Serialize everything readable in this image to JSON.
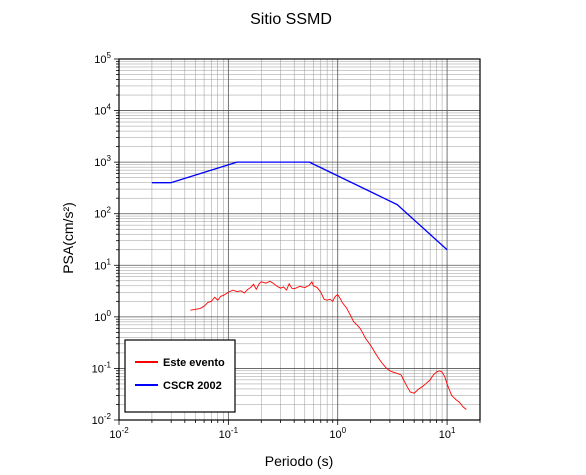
{
  "chart_data": {
    "type": "line",
    "title": "Sitio SSMD",
    "xlabel": "Periodo (s)",
    "ylabel": "PSA(cm/s²)",
    "xscale": "log",
    "yscale": "log",
    "xlim": [
      0.01,
      20
    ],
    "ylim": [
      0.01,
      100000
    ],
    "grid": true,
    "legend_position": "bottom-left",
    "x_ticks": [
      {
        "base": "10",
        "exp": "-2",
        "value": 0.01
      },
      {
        "base": "10",
        "exp": "-1",
        "value": 0.1
      },
      {
        "base": "10",
        "exp": "0",
        "value": 1
      },
      {
        "base": "10",
        "exp": "1",
        "value": 10
      }
    ],
    "y_ticks": [
      {
        "base": "10",
        "exp": "-2",
        "value": 0.01
      },
      {
        "base": "10",
        "exp": "-1",
        "value": 0.1
      },
      {
        "base": "10",
        "exp": "0",
        "value": 1
      },
      {
        "base": "10",
        "exp": "1",
        "value": 10
      },
      {
        "base": "10",
        "exp": "2",
        "value": 100
      },
      {
        "base": "10",
        "exp": "3",
        "value": 1000
      },
      {
        "base": "10",
        "exp": "4",
        "value": 10000
      },
      {
        "base": "10",
        "exp": "5",
        "value": 100000
      }
    ],
    "series": [
      {
        "name": "Este evento",
        "color": "#ff0000",
        "points": [
          [
            0.045,
            1.35
          ],
          [
            0.05,
            1.4
          ],
          [
            0.055,
            1.45
          ],
          [
            0.06,
            1.6
          ],
          [
            0.065,
            1.9
          ],
          [
            0.07,
            2.0
          ],
          [
            0.075,
            2.4
          ],
          [
            0.08,
            2.1
          ],
          [
            0.085,
            2.5
          ],
          [
            0.09,
            2.6
          ],
          [
            0.1,
            3.0
          ],
          [
            0.11,
            3.3
          ],
          [
            0.12,
            3.1
          ],
          [
            0.13,
            3.2
          ],
          [
            0.14,
            2.9
          ],
          [
            0.15,
            3.4
          ],
          [
            0.16,
            3.7
          ],
          [
            0.17,
            4.3
          ],
          [
            0.18,
            3.4
          ],
          [
            0.19,
            4.3
          ],
          [
            0.2,
            4.8
          ],
          [
            0.22,
            4.5
          ],
          [
            0.24,
            4.9
          ],
          [
            0.26,
            4.4
          ],
          [
            0.28,
            3.9
          ],
          [
            0.3,
            3.6
          ],
          [
            0.32,
            3.8
          ],
          [
            0.34,
            3.3
          ],
          [
            0.36,
            4.4
          ],
          [
            0.38,
            3.6
          ],
          [
            0.4,
            3.5
          ],
          [
            0.45,
            3.9
          ],
          [
            0.5,
            3.7
          ],
          [
            0.55,
            4.1
          ],
          [
            0.58,
            4.8
          ],
          [
            0.6,
            4.0
          ],
          [
            0.65,
            3.7
          ],
          [
            0.7,
            3.0
          ],
          [
            0.75,
            2.2
          ],
          [
            0.8,
            2.1
          ],
          [
            0.85,
            2.2
          ],
          [
            0.9,
            2.0
          ],
          [
            0.95,
            2.5
          ],
          [
            1.0,
            2.7
          ],
          [
            1.05,
            2.3
          ],
          [
            1.1,
            1.9
          ],
          [
            1.2,
            1.5
          ],
          [
            1.3,
            1.1
          ],
          [
            1.4,
            0.8
          ],
          [
            1.5,
            0.7
          ],
          [
            1.6,
            0.6
          ],
          [
            1.7,
            0.48
          ],
          [
            1.8,
            0.38
          ],
          [
            2.0,
            0.28
          ],
          [
            2.2,
            0.2
          ],
          [
            2.4,
            0.15
          ],
          [
            2.6,
            0.12
          ],
          [
            2.8,
            0.1
          ],
          [
            3.0,
            0.09
          ],
          [
            3.2,
            0.085
          ],
          [
            3.5,
            0.08
          ],
          [
            3.8,
            0.075
          ],
          [
            4.0,
            0.06
          ],
          [
            4.3,
            0.045
          ],
          [
            4.6,
            0.035
          ],
          [
            5.0,
            0.033
          ],
          [
            5.5,
            0.04
          ],
          [
            6.0,
            0.045
          ],
          [
            6.5,
            0.052
          ],
          [
            7.0,
            0.06
          ],
          [
            7.5,
            0.075
          ],
          [
            8.0,
            0.085
          ],
          [
            8.5,
            0.09
          ],
          [
            9.0,
            0.085
          ],
          [
            9.5,
            0.07
          ],
          [
            10.0,
            0.05
          ],
          [
            11.0,
            0.03
          ],
          [
            12.0,
            0.025
          ],
          [
            13.0,
            0.022
          ],
          [
            14.0,
            0.018
          ],
          [
            15.0,
            0.016
          ]
        ]
      },
      {
        "name": "CSCR 2002",
        "color": "#0000ff",
        "points": [
          [
            0.02,
            400
          ],
          [
            0.03,
            400
          ],
          [
            0.12,
            1000
          ],
          [
            0.55,
            1000
          ],
          [
            3.5,
            150
          ],
          [
            10.0,
            20
          ]
        ]
      }
    ]
  }
}
